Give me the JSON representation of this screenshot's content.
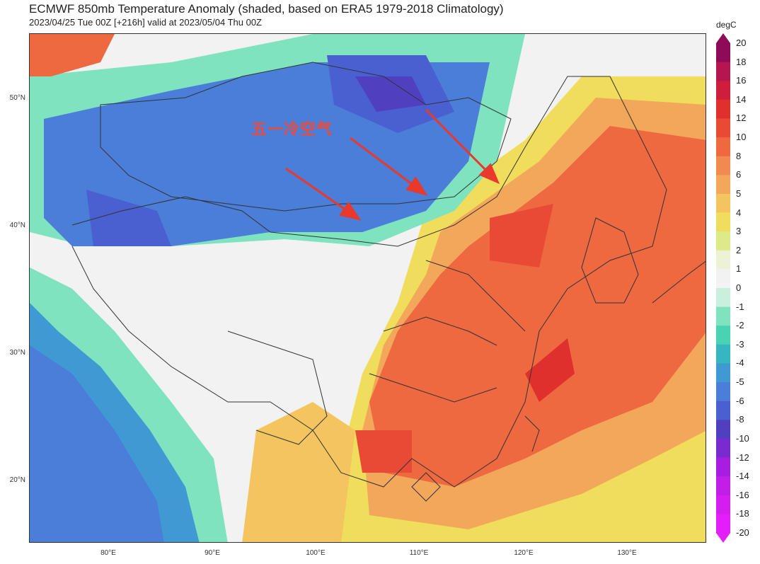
{
  "title": "ECMWF 850mb Temperature Anomaly (shaded, based on ERA5 1979-2018 Climatology)",
  "subtitle": "2023/04/25 Tue 00Z [+216h] valid at 2023/05/04 Thu 00Z",
  "annotation": "五一冷空气",
  "colorbar": {
    "unit": "degC",
    "ticks": [
      "20",
      "18",
      "16",
      "14",
      "12",
      "10",
      "8",
      "6",
      "5",
      "4",
      "3",
      "2",
      "1",
      "0",
      "-1",
      "-2",
      "-3",
      "-4",
      "-5",
      "-6",
      "-8",
      "-10",
      "-12",
      "-14",
      "-16",
      "-18",
      "-20"
    ],
    "colors": [
      "#8e0b57",
      "#b5164f",
      "#cd1f3c",
      "#e0302d",
      "#e84a35",
      "#ee6840",
      "#f08a50",
      "#f3a75a",
      "#f4c55f",
      "#f0dd5c",
      "#dcea8a",
      "#ecf3d4",
      "#f2f2f2",
      "#c8f0dc",
      "#7fe3bf",
      "#48d3b2",
      "#35b6c0",
      "#3f9ad3",
      "#4a7ed8",
      "#4a60d0",
      "#5040c0",
      "#7a2bd0",
      "#a81ee0",
      "#c11ee8",
      "#d41ef0",
      "#e41ef8"
    ]
  },
  "axes": {
    "lat_labels": [
      "50°N",
      "40°N",
      "30°N",
      "20°N"
    ],
    "lon_labels": [
      "80°E",
      "90°E",
      "100°E",
      "110°E",
      "120°E",
      "130°E"
    ]
  },
  "colors": {
    "annotation": "#f04a3a",
    "arrow": "#e8392c"
  }
}
